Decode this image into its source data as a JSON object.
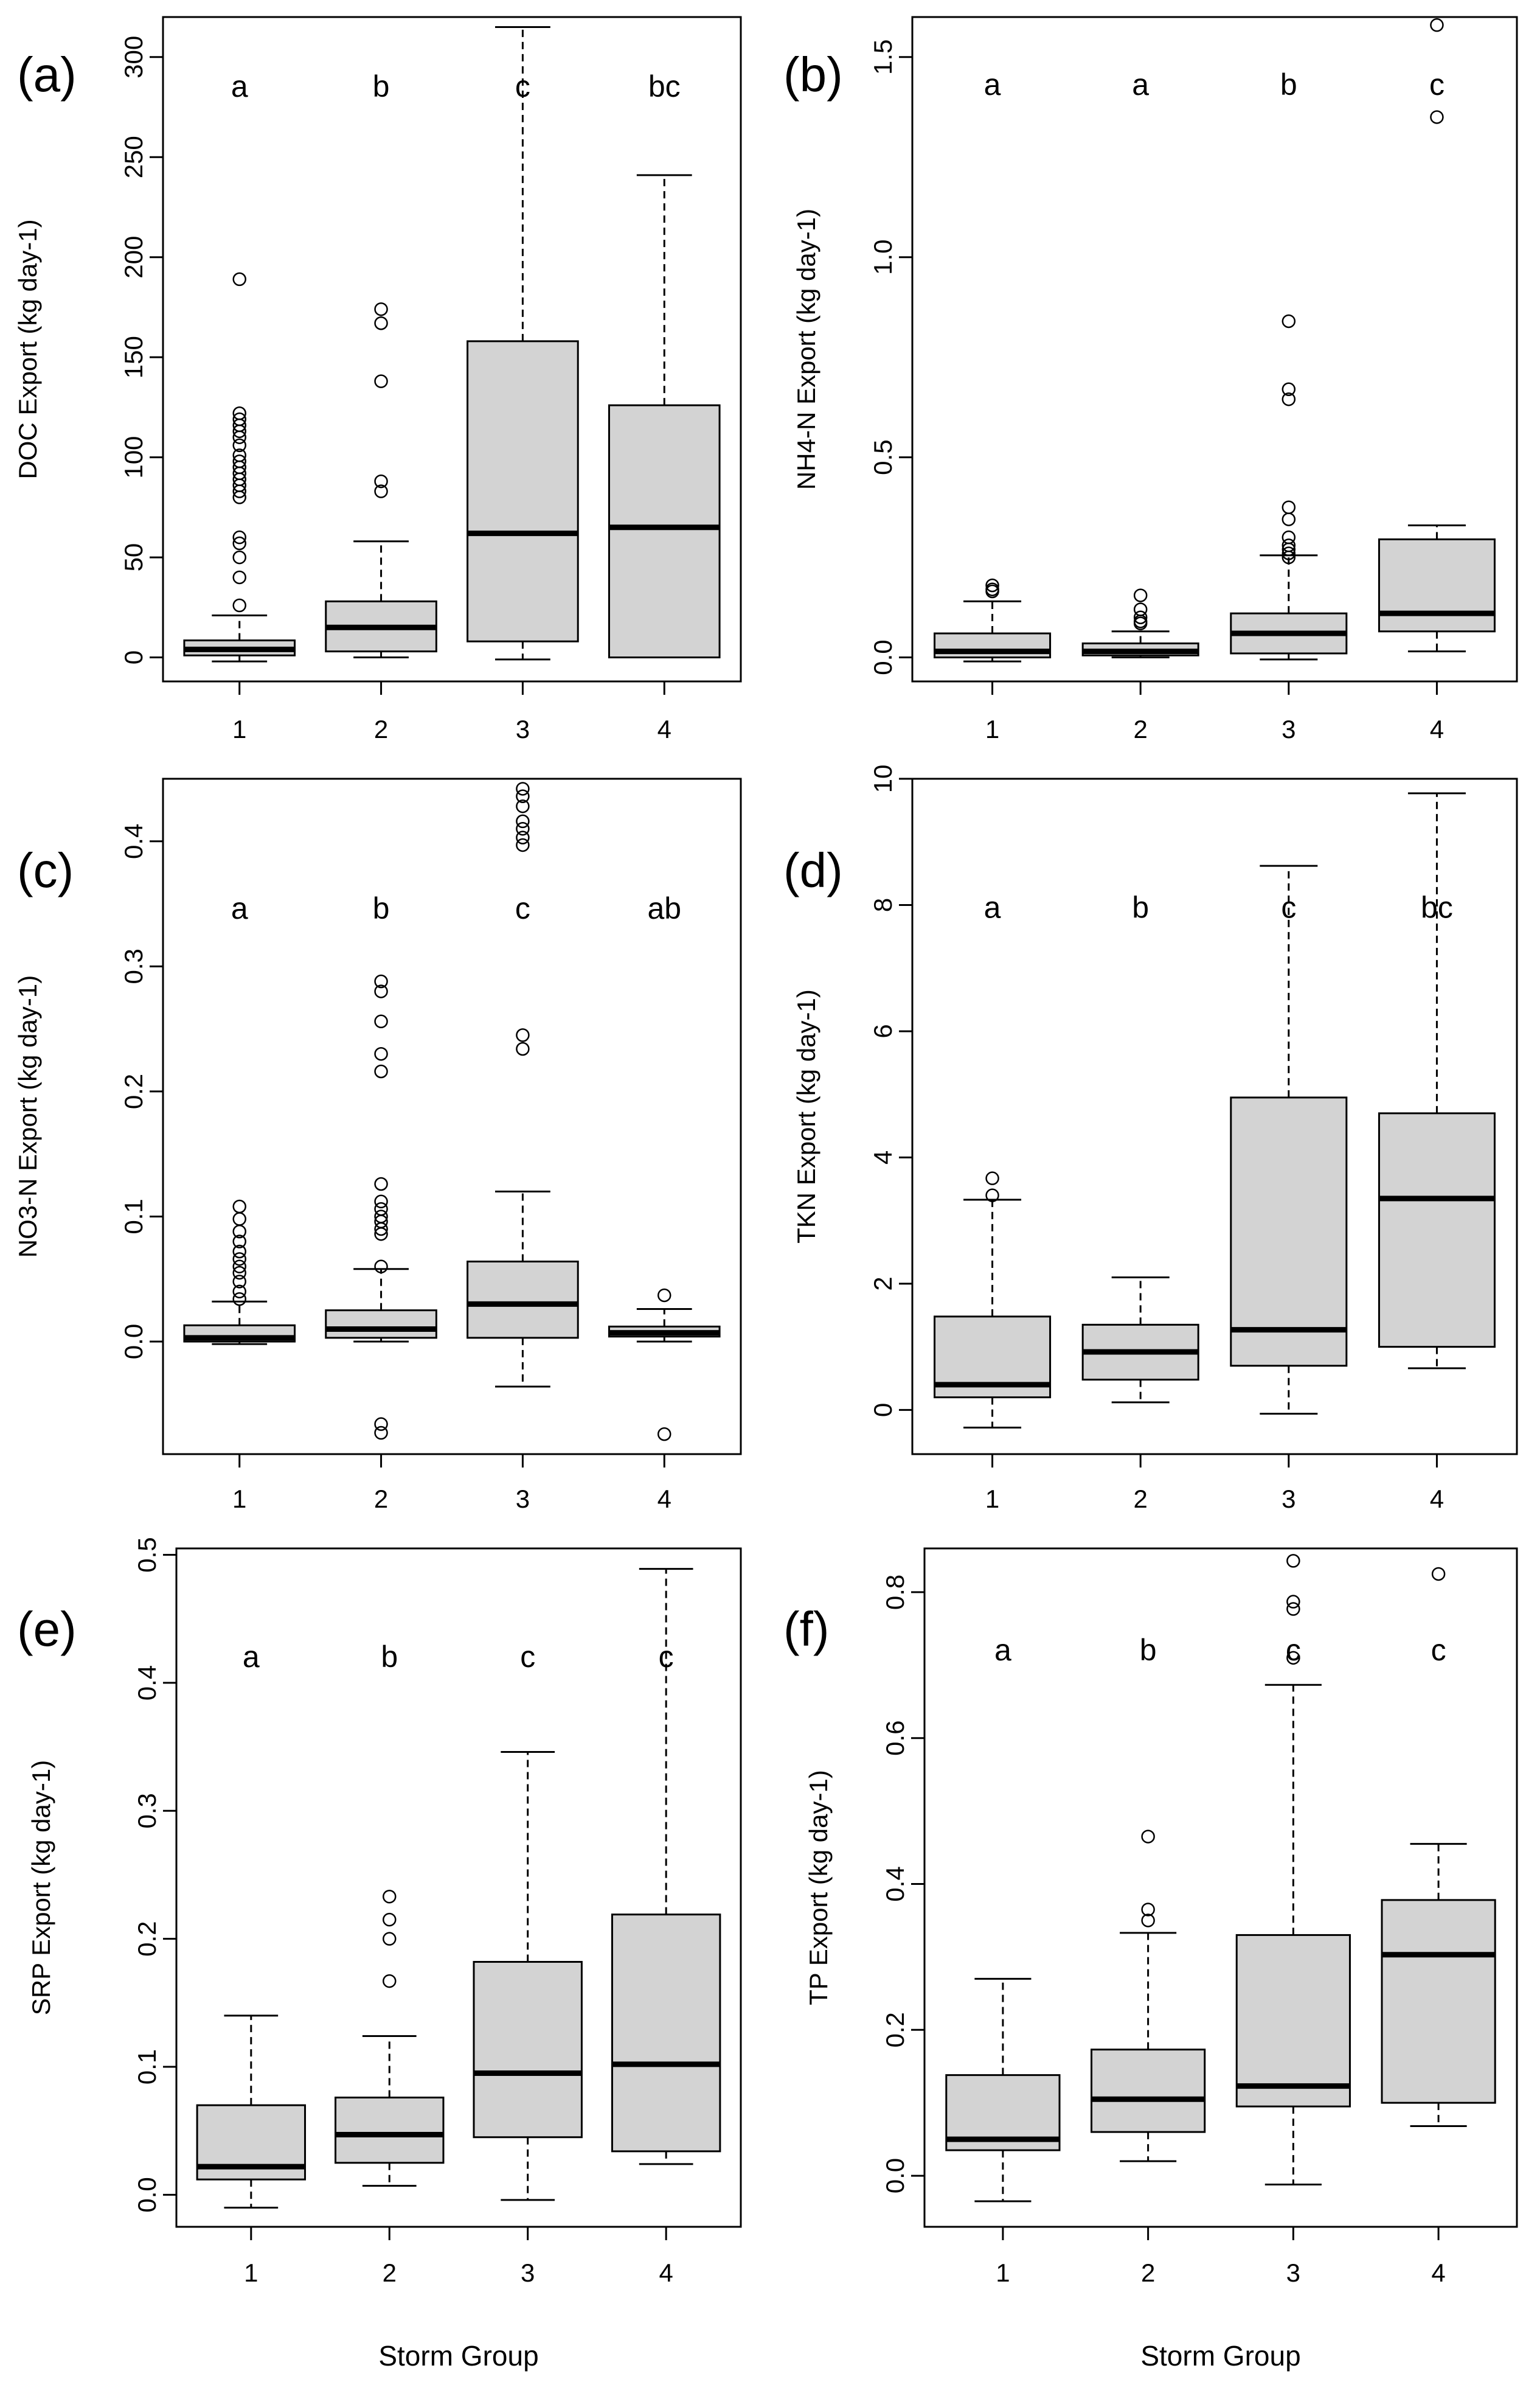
{
  "figure_xlabel": "Storm Group",
  "chart_data": [
    {
      "id": "a",
      "panel_label": "(a)",
      "type": "boxplot",
      "ylabel": "DOC Export (kg day-1)",
      "xlabel": "",
      "categories": [
        "1",
        "2",
        "3",
        "4"
      ],
      "ylim": [
        -12,
        320
      ],
      "yticks": [
        0,
        50,
        100,
        150,
        200,
        250,
        300
      ],
      "letters": [
        "a",
        "b",
        "c",
        "bc"
      ],
      "letter_y": 285,
      "boxes": [
        {
          "whisker_low": -2,
          "q1": 1,
          "median": 4,
          "q3": 8.5,
          "whisker_high": 21,
          "outliers": [
            189,
            122,
            119,
            116,
            113,
            110,
            106,
            101,
            98,
            95,
            92,
            89,
            86,
            83,
            80,
            60,
            57,
            50,
            40,
            26
          ]
        },
        {
          "whisker_low": 0,
          "q1": 3,
          "median": 15,
          "q3": 28,
          "whisker_high": 58,
          "outliers": [
            174,
            167,
            138,
            88,
            83
          ]
        },
        {
          "whisker_low": -1,
          "q1": 8,
          "median": 62,
          "q3": 158,
          "whisker_high": 315,
          "outliers": []
        },
        {
          "whisker_low": 0,
          "q1": 0,
          "median": 65,
          "q3": 126,
          "whisker_high": 241,
          "outliers": []
        }
      ]
    },
    {
      "id": "b",
      "panel_label": "(b)",
      "type": "boxplot",
      "ylabel": "NH4-N Export (kg day-1)",
      "xlabel": "",
      "categories": [
        "1",
        "2",
        "3",
        "4"
      ],
      "ylim": [
        -0.06,
        1.6
      ],
      "yticks": [
        0.0,
        0.5,
        1.0,
        1.5
      ],
      "letters": [
        "a",
        "a",
        "b",
        "c"
      ],
      "letter_y": 1.43,
      "boxes": [
        {
          "whisker_low": -0.01,
          "q1": 0.0,
          "median": 0.015,
          "q3": 0.06,
          "whisker_high": 0.14,
          "outliers": [
            0.18,
            0.17,
            0.165
          ]
        },
        {
          "whisker_low": 0.0,
          "q1": 0.005,
          "median": 0.015,
          "q3": 0.035,
          "whisker_high": 0.065,
          "outliers": [
            0.155,
            0.12,
            0.1,
            0.09,
            0.085
          ]
        },
        {
          "whisker_low": -0.005,
          "q1": 0.01,
          "median": 0.06,
          "q3": 0.11,
          "whisker_high": 0.255,
          "outliers": [
            0.84,
            0.67,
            0.645,
            0.375,
            0.345,
            0.3,
            0.28,
            0.27,
            0.26,
            0.25
          ]
        },
        {
          "whisker_low": 0.015,
          "q1": 0.065,
          "median": 0.11,
          "q3": 0.295,
          "whisker_high": 0.33,
          "outliers": [
            1.58,
            1.35
          ]
        }
      ]
    },
    {
      "id": "c",
      "panel_label": "(c)",
      "type": "boxplot",
      "ylabel": "NO3-N Export (kg day-1)",
      "xlabel": "",
      "categories": [
        "1",
        "2",
        "3",
        "4"
      ],
      "ylim": [
        -0.09,
        0.45
      ],
      "yticks": [
        0.0,
        0.1,
        0.2,
        0.3,
        0.4
      ],
      "letters": [
        "a",
        "b",
        "c",
        "ab"
      ],
      "letter_y": 0.346,
      "boxes": [
        {
          "whisker_low": -0.002,
          "q1": 0.0,
          "median": 0.003,
          "q3": 0.013,
          "whisker_high": 0.032,
          "outliers": [
            0.108,
            0.098,
            0.088,
            0.08,
            0.072,
            0.066,
            0.06,
            0.055,
            0.048,
            0.04,
            0.034
          ]
        },
        {
          "whisker_low": 0.0,
          "q1": 0.003,
          "median": 0.01,
          "q3": 0.025,
          "whisker_high": 0.058,
          "outliers": [
            0.288,
            0.28,
            0.256,
            0.23,
            0.216,
            0.126,
            0.112,
            0.106,
            0.1,
            0.096,
            0.09,
            0.086,
            0.06,
            -0.066,
            -0.073
          ]
        },
        {
          "whisker_low": -0.036,
          "q1": 0.003,
          "median": 0.03,
          "q3": 0.064,
          "whisker_high": 0.12,
          "outliers": [
            0.442,
            0.436,
            0.428,
            0.416,
            0.41,
            0.403,
            0.397,
            0.245,
            0.234
          ]
        },
        {
          "whisker_low": 0.0,
          "q1": 0.004,
          "median": 0.007,
          "q3": 0.012,
          "whisker_high": 0.026,
          "outliers": [
            0.037,
            -0.074
          ]
        }
      ]
    },
    {
      "id": "d",
      "panel_label": "(d)",
      "type": "boxplot",
      "ylabel": "TKN Export (kg day-1)",
      "xlabel": "",
      "categories": [
        "1",
        "2",
        "3",
        "4"
      ],
      "ylim": [
        -0.7,
        10
      ],
      "yticks": [
        0,
        2,
        4,
        6,
        8,
        10
      ],
      "letters": [
        "a",
        "b",
        "c",
        "bc"
      ],
      "letter_y": 7.95,
      "boxes": [
        {
          "whisker_low": -0.28,
          "q1": 0.2,
          "median": 0.4,
          "q3": 1.48,
          "whisker_high": 3.33,
          "outliers": [
            3.67,
            3.4
          ]
        },
        {
          "whisker_low": 0.12,
          "q1": 0.48,
          "median": 0.92,
          "q3": 1.35,
          "whisker_high": 2.1,
          "outliers": []
        },
        {
          "whisker_low": -0.06,
          "q1": 0.7,
          "median": 1.27,
          "q3": 4.95,
          "whisker_high": 8.62,
          "outliers": []
        },
        {
          "whisker_low": 0.66,
          "q1": 1.0,
          "median": 3.35,
          "q3": 4.7,
          "whisker_high": 9.77,
          "outliers": []
        }
      ]
    },
    {
      "id": "e",
      "panel_label": "(e)",
      "type": "boxplot",
      "ylabel": "SRP Export (kg day-1)",
      "xlabel": "Storm Group",
      "categories": [
        "1",
        "2",
        "3",
        "4"
      ],
      "ylim": [
        -0.025,
        0.505
      ],
      "yticks": [
        0.0,
        0.1,
        0.2,
        0.3,
        0.4,
        0.5
      ],
      "letters": [
        "a",
        "b",
        "c",
        "c"
      ],
      "letter_y": 0.42,
      "boxes": [
        {
          "whisker_low": -0.01,
          "q1": 0.012,
          "median": 0.022,
          "q3": 0.07,
          "whisker_high": 0.14,
          "outliers": []
        },
        {
          "whisker_low": 0.007,
          "q1": 0.025,
          "median": 0.047,
          "q3": 0.076,
          "whisker_high": 0.124,
          "outliers": [
            0.233,
            0.215,
            0.2,
            0.167
          ]
        },
        {
          "whisker_low": -0.004,
          "q1": 0.045,
          "median": 0.095,
          "q3": 0.182,
          "whisker_high": 0.346,
          "outliers": []
        },
        {
          "whisker_low": 0.024,
          "q1": 0.034,
          "median": 0.102,
          "q3": 0.219,
          "whisker_high": 0.489,
          "outliers": []
        }
      ]
    },
    {
      "id": "f",
      "panel_label": "(f)",
      "type": "boxplot",
      "ylabel": "TP Export (kg day-1)",
      "xlabel": "Storm Group",
      "categories": [
        "1",
        "2",
        "3",
        "4"
      ],
      "ylim": [
        -0.07,
        0.86
      ],
      "yticks": [
        0.0,
        0.2,
        0.4,
        0.6,
        0.8
      ],
      "letters": [
        "a",
        "b",
        "c",
        "c"
      ],
      "letter_y": 0.72,
      "boxes": [
        {
          "whisker_low": -0.035,
          "q1": 0.035,
          "median": 0.05,
          "q3": 0.138,
          "whisker_high": 0.27,
          "outliers": []
        },
        {
          "whisker_low": 0.02,
          "q1": 0.06,
          "median": 0.105,
          "q3": 0.173,
          "whisker_high": 0.333,
          "outliers": [
            0.465,
            0.365,
            0.35
          ]
        },
        {
          "whisker_low": -0.012,
          "q1": 0.095,
          "median": 0.123,
          "q3": 0.33,
          "whisker_high": 0.673,
          "outliers": [
            0.843,
            0.787,
            0.777,
            0.71
          ]
        },
        {
          "whisker_low": 0.068,
          "q1": 0.1,
          "median": 0.303,
          "q3": 0.378,
          "whisker_high": 0.455,
          "outliers": [
            0.825
          ]
        }
      ]
    }
  ]
}
